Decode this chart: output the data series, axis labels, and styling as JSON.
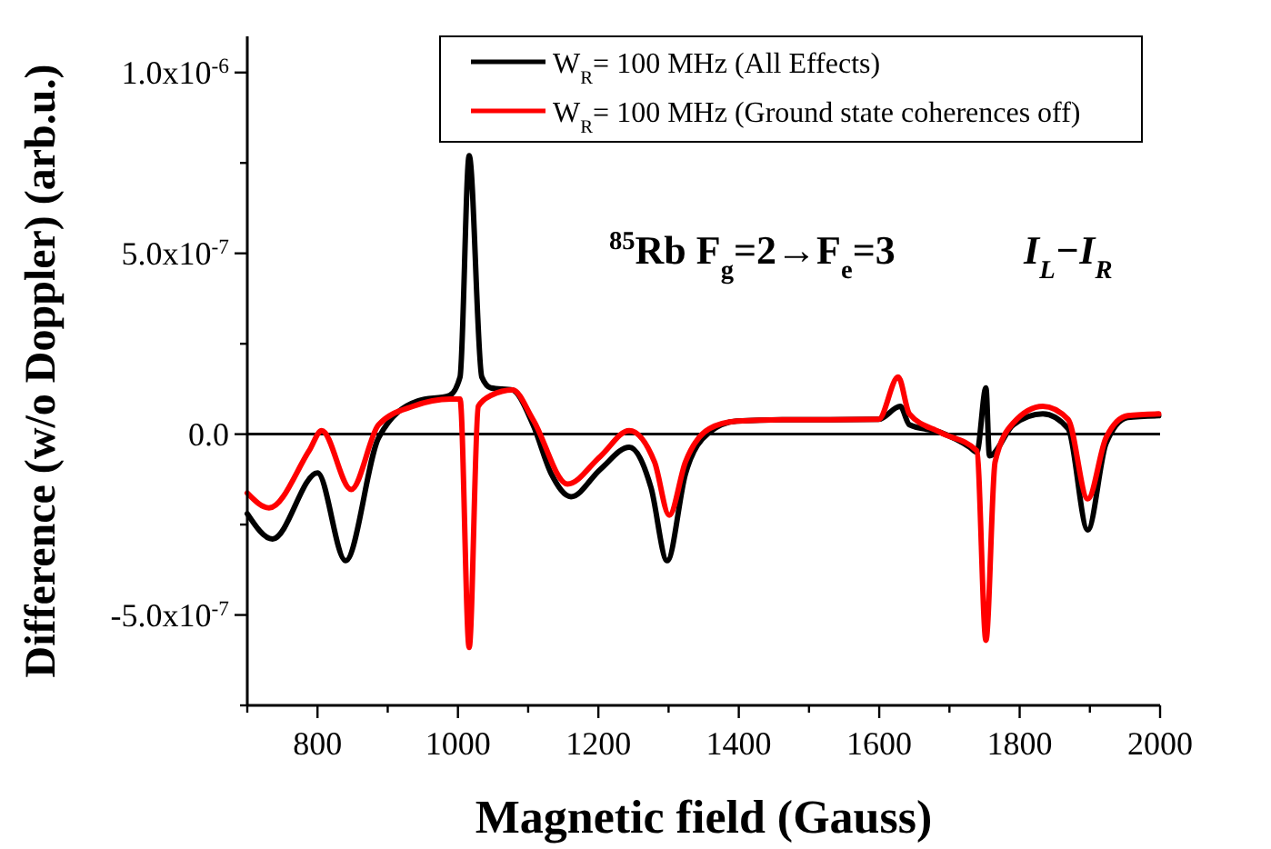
{
  "chart_data": {
    "type": "line",
    "xlabel": "Magnetic field (Gauss)",
    "ylabel": "Difference (w/o Doppler) (arb.u.)",
    "xlim": [
      700,
      2000
    ],
    "ylim": [
      -7.5e-07,
      1.1e-06
    ],
    "xticks": [
      {
        "value": 700,
        "label": null
      },
      800,
      {
        "value": 900,
        "label": null
      },
      1000,
      {
        "value": 1100,
        "label": null
      },
      1200,
      {
        "value": 1300,
        "label": null
      },
      1400,
      {
        "value": 1500,
        "label": null
      },
      1600,
      {
        "value": 1700,
        "label": null
      },
      1800,
      {
        "value": 1900,
        "label": null
      },
      2000
    ],
    "yticks": [
      {
        "value": -7.5e-07,
        "label": null
      },
      {
        "value": -5e-07,
        "label": "-5.0x10$^{-7}$"
      },
      {
        "value": -2.5e-07,
        "label": null
      },
      {
        "value": 0,
        "label": "0.0"
      },
      {
        "value": 2.5e-07,
        "label": null
      },
      {
        "value": 5e-07,
        "label": "5.0x10$^{-7}$"
      },
      {
        "value": 7.5e-07,
        "label": null
      },
      {
        "value": 1e-06,
        "label": "1.0x10$^{-6}$"
      }
    ],
    "grid": false,
    "legend": "top right",
    "marker": "none",
    "line_style": "solid",
    "annotations": [
      "$^{85}$Rb F$_{g}$=2→F$_{e}$=3",
      "I$_{L}$−I$_{R}$"
    ],
    "ref_lines": [
      {
        "axis": "y",
        "value": 0,
        "color": "#000000"
      }
    ],
    "series": [
      {
        "name": "W$_{R}$= 100 MHz (All Effects)",
        "color": "#000000",
        "x": [
          700,
          736,
          800,
          840,
          887,
          943,
          988,
          1003,
          1016,
          1034,
          1047,
          1078,
          1107,
          1133,
          1161,
          1203,
          1244,
          1275,
          1298,
          1324,
          1358,
          1397,
          1462,
          1530,
          1599,
          1630,
          1643,
          1687,
          1729,
          1739,
          1752,
          1757,
          1791,
          1833,
          1869,
          1897,
          1923,
          1954,
          1998
        ],
        "values": [
          -2.2e-07,
          -2.9e-07,
          -1.07e-07,
          -3.5e-07,
          -1e-08,
          9.2e-08,
          1.07e-07,
          1.58e-07,
          7.7e-07,
          1.58e-07,
          1.28e-07,
          1.22e-07,
          2.6e-08,
          -1.1e-07,
          -1.73e-07,
          -9.7e-08,
          -3.6e-08,
          -1.48e-07,
          -3.5e-07,
          -1.1e-07,
          5e-09,
          3.6e-08,
          4e-08,
          4e-08,
          4.1e-08,
          7.7e-08,
          2.6e-08,
          5e-09,
          -3.6e-08,
          -5e-08,
          1.28e-07,
          -6e-08,
          2.6e-08,
          5.6e-08,
          1.5e-08,
          -2.65e-07,
          -2.6e-08,
          4.6e-08,
          5.1e-08
        ]
      },
      {
        "name": "W$_{R}$= 100 MHz (Ground state coherences off)",
        "color": "#ff0000",
        "x": [
          700,
          731,
          788,
          806,
          848,
          887,
          936,
          990,
          1003,
          1016,
          1029,
          1047,
          1078,
          1107,
          1156,
          1203,
          1244,
          1280,
          1301,
          1324,
          1358,
          1397,
          1462,
          1530,
          1599,
          1627,
          1643,
          1687,
          1739,
          1752,
          1765,
          1791,
          1833,
          1869,
          1897,
          1923,
          1954,
          1998
        ],
        "values": [
          -1.63e-07,
          -2.04e-07,
          -4.6e-08,
          1e-08,
          -1.53e-07,
          2.6e-08,
          7.7e-08,
          9.7e-08,
          9.7e-08,
          -5.9e-07,
          7.7e-08,
          1.07e-07,
          1.22e-07,
          4e-08,
          -1.38e-07,
          -6.1e-08,
          1e-08,
          -7.7e-08,
          -2.24e-07,
          -7.7e-08,
          1.5e-08,
          3.6e-08,
          4e-08,
          4e-08,
          4.1e-08,
          1.58e-07,
          5.6e-08,
          5e-09,
          -4.6e-08,
          -5.7e-07,
          -7.7e-08,
          3.1e-08,
          7.7e-08,
          4.1e-08,
          -1.79e-07,
          -1e-08,
          5.1e-08,
          5.6e-08
        ]
      }
    ]
  }
}
